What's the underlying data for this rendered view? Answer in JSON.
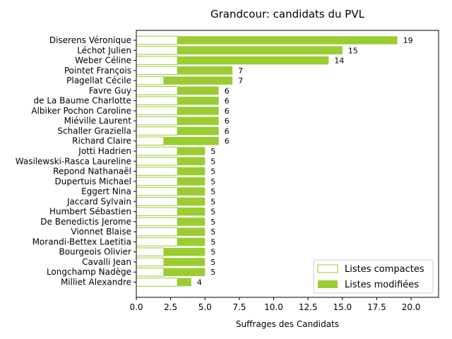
{
  "chart_data": {
    "type": "bar",
    "orientation": "horizontal",
    "stacked": true,
    "title": "Grandcour: candidats du PVL",
    "xlabel": "Suffrages des Candidats",
    "ylabel": "",
    "xlim": [
      0,
      22
    ],
    "xticks": [
      "0.0",
      "2.5",
      "5.0",
      "7.5",
      "10.0",
      "12.5",
      "15.0",
      "17.5",
      "20.0"
    ],
    "xtick_values": [
      0,
      2.5,
      5,
      7.5,
      10,
      12.5,
      15,
      17.5,
      20
    ],
    "grid": false,
    "legend_position": "bottom-right",
    "colors": {
      "accent": "#9acd32",
      "compact_fill": "#ffffff",
      "compact_edge": "#9acd32"
    },
    "categories": [
      "Diserens Véronique",
      "Léchot Julien",
      "Weber Céline",
      "Pointet François",
      "Plagellat Cécile",
      "Favre Guy",
      "de La Baume Charlotte",
      "Albiker Pochon Caroline",
      "Miéville Laurent",
      "Schaller Graziella",
      "Richard Claire",
      "Jotti Hadrien",
      "Wasilewski-Rasca Laureline",
      "Repond Nathanaël",
      "Dupertuis Michael",
      "Eggert Nina",
      "Jaccard Sylvain",
      "Humbert Sébastien",
      "De Benedictis Jerome",
      "Vionnet Blaise",
      "Morandi-Bettex Laetitia",
      "Bourgeois Olivier",
      "Cavalli Jean",
      "Longchamp Nadège",
      "Milliet Alexandre"
    ],
    "series": [
      {
        "name": "Listes compactes",
        "values": [
          3,
          3,
          3,
          3,
          2,
          3,
          3,
          3,
          3,
          3,
          2,
          3,
          3,
          3,
          3,
          3,
          3,
          3,
          3,
          3,
          3,
          2,
          2,
          2,
          3
        ]
      },
      {
        "name": "Listes modifiées",
        "values": [
          16,
          12,
          11,
          4,
          5,
          3,
          3,
          3,
          3,
          3,
          4,
          2,
          2,
          2,
          2,
          2,
          2,
          2,
          2,
          2,
          2,
          3,
          3,
          3,
          1
        ]
      }
    ],
    "totals": [
      19,
      15,
      14,
      7,
      7,
      6,
      6,
      6,
      6,
      6,
      6,
      5,
      5,
      5,
      5,
      5,
      5,
      5,
      5,
      5,
      5,
      5,
      5,
      5,
      4
    ]
  }
}
